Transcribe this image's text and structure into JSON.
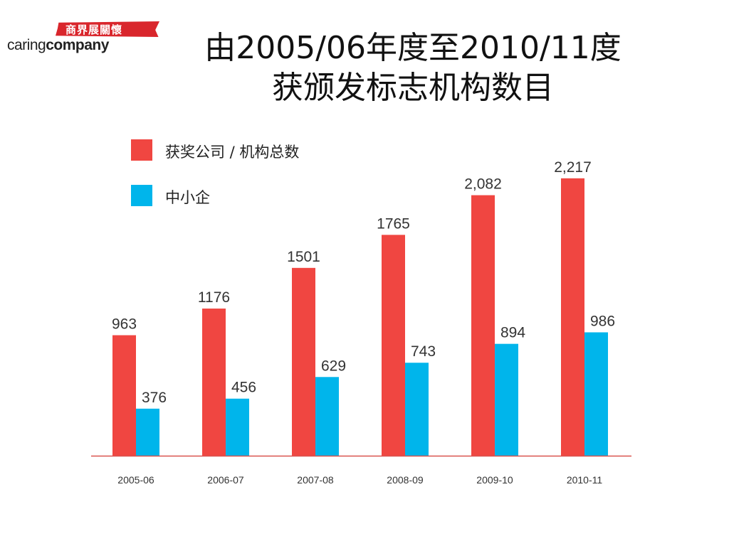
{
  "logo": {
    "banner_text": "商界展關懷",
    "word_regular": "caring",
    "word_bold": "company"
  },
  "title": {
    "line1": "由2005/06年度至2010/11度",
    "line2": "获颁发标志机构数目"
  },
  "colors": {
    "total": "#f04641",
    "sme": "#00b5eb",
    "axis": "#d9534f"
  },
  "chart_data": {
    "type": "bar",
    "categories": [
      "2005-06",
      "2006-07",
      "2007-08",
      "2008-09",
      "2009-10",
      "2010-11"
    ],
    "series": [
      {
        "name": "获奖公司 / 机构总数",
        "values": [
          963,
          1176,
          1501,
          1765,
          2082,
          2217
        ],
        "labels": [
          "963",
          "1176",
          "1501",
          "1765",
          "2,082",
          "2,217"
        ]
      },
      {
        "name": "中小企",
        "values": [
          376,
          456,
          629,
          743,
          894,
          986
        ],
        "labels": [
          "376",
          "456",
          "629",
          "743",
          "894",
          "986"
        ]
      }
    ],
    "ylim": [
      0,
      2400
    ],
    "grid": false,
    "legend_position": "top-left"
  }
}
